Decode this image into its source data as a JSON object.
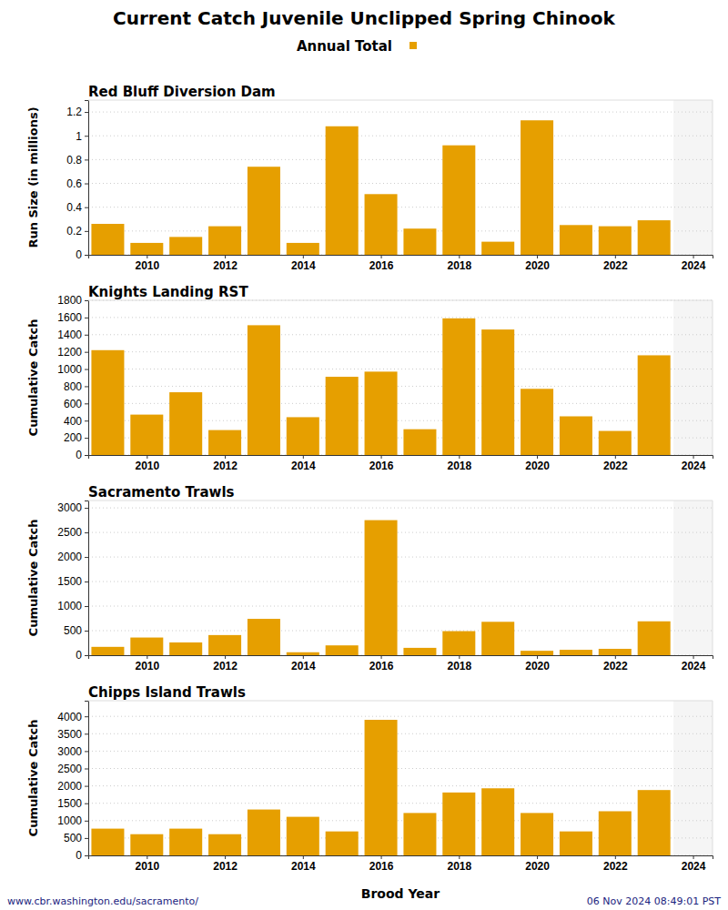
{
  "title": "Current Catch Juvenile Unclipped Spring Chinook",
  "legend_label": "Annual Total",
  "x_label": "Brood Year",
  "source": "www.cbr.washington.edu/sacramento/",
  "timestamp": "06 Nov 2024 08:49:01 PST",
  "chart_data": [
    {
      "type": "bar",
      "title": "Red Bluff Diversion Dam",
      "y_label": "Run Size (in millions)",
      "color": "#e69f00",
      "grid": true,
      "x": [
        2009,
        2010,
        2011,
        2012,
        2013,
        2014,
        2015,
        2016,
        2017,
        2018,
        2019,
        2020,
        2021,
        2022,
        2023
      ],
      "values": [
        0.26,
        0.1,
        0.15,
        0.24,
        0.74,
        0.1,
        1.08,
        0.51,
        0.22,
        0.92,
        0.11,
        1.13,
        0.25,
        0.24,
        0.29
      ],
      "xlim": [
        2008.5,
        2024.5
      ],
      "xticks": [
        2010,
        2012,
        2014,
        2016,
        2018,
        2020,
        2022,
        2024
      ],
      "ylim": [
        0,
        1.3
      ],
      "yticks": [
        0,
        0.2,
        0.4,
        0.6,
        0.8,
        1,
        1.2
      ]
    },
    {
      "type": "bar",
      "title": "Knights Landing RST",
      "y_label": "Cumulative Catch",
      "color": "#e69f00",
      "grid": true,
      "x": [
        2009,
        2010,
        2011,
        2012,
        2013,
        2014,
        2015,
        2016,
        2017,
        2018,
        2019,
        2020,
        2021,
        2022,
        2023
      ],
      "values": [
        1220,
        470,
        730,
        290,
        1510,
        440,
        910,
        970,
        300,
        1590,
        1460,
        770,
        450,
        280,
        1160
      ],
      "xlim": [
        2008.5,
        2024.5
      ],
      "xticks": [
        2010,
        2012,
        2014,
        2016,
        2018,
        2020,
        2022,
        2024
      ],
      "ylim": [
        0,
        1800
      ],
      "yticks": [
        0,
        200,
        400,
        600,
        800,
        1000,
        1200,
        1400,
        1600,
        1800
      ]
    },
    {
      "type": "bar",
      "title": "Sacramento Trawls",
      "y_label": "Cumulative Catch",
      "color": "#e69f00",
      "grid": true,
      "x": [
        2009,
        2010,
        2011,
        2012,
        2013,
        2014,
        2015,
        2016,
        2017,
        2018,
        2019,
        2020,
        2021,
        2022,
        2023
      ],
      "values": [
        170,
        360,
        260,
        410,
        740,
        60,
        200,
        2750,
        150,
        490,
        680,
        90,
        110,
        130,
        690
      ],
      "xlim": [
        2008.5,
        2024.5
      ],
      "xticks": [
        2010,
        2012,
        2014,
        2016,
        2018,
        2020,
        2022,
        2024
      ],
      "ylim": [
        0,
        3150
      ],
      "yticks": [
        0,
        500,
        1000,
        1500,
        2000,
        2500,
        3000
      ]
    },
    {
      "type": "bar",
      "title": "Chipps Island Trawls",
      "y_label": "Cumulative Catch",
      "color": "#e69f00",
      "grid": true,
      "x": [
        2009,
        2010,
        2011,
        2012,
        2013,
        2014,
        2015,
        2016,
        2017,
        2018,
        2019,
        2020,
        2021,
        2022,
        2023
      ],
      "values": [
        770,
        610,
        770,
        610,
        1320,
        1110,
        690,
        3900,
        1220,
        1810,
        1930,
        1220,
        690,
        1270,
        1880
      ],
      "xlim": [
        2008.5,
        2024.5
      ],
      "xticks": [
        2010,
        2012,
        2014,
        2016,
        2018,
        2020,
        2022,
        2024
      ],
      "ylim": [
        0,
        4450
      ],
      "yticks": [
        0,
        500,
        1000,
        1500,
        2000,
        2500,
        3000,
        3500,
        4000
      ]
    }
  ]
}
